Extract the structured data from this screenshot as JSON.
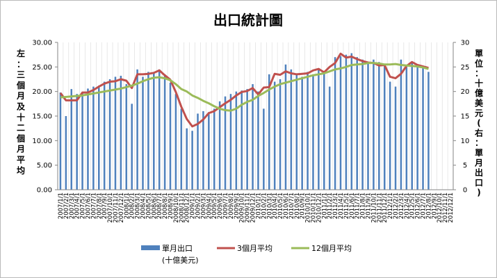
{
  "chart_data": {
    "type": "bar",
    "title": "出口統計圖",
    "ylabel_left": "左：三個月及十二個月平均",
    "ylabel_right": "單位：十億美元(右：單月出口)",
    "ylim_left": [
      0,
      30
    ],
    "ylim_right": [
      0,
      30
    ],
    "yticks_left": [
      "0.00",
      "5.00",
      "10.00",
      "15.00",
      "20.00",
      "25.00",
      "30.00"
    ],
    "yticks_right": [
      "0",
      "5",
      "10",
      "15",
      "20",
      "25",
      "30"
    ],
    "grid": "vertical",
    "legend_position": "bottom",
    "x": [
      "2007/1/1",
      "2007/2/1",
      "2007/3/1",
      "2007/4/1",
      "2007/5/1",
      "2007/6/1",
      "2007/7/1",
      "2007/8/1",
      "2007/9/1",
      "2007/10/1",
      "2007/11/1",
      "2007/12/1",
      "2008/1/1",
      "2008/2/1",
      "2008/3/1",
      "2008/4/1",
      "2008/5/1",
      "2008/6/1",
      "2008/7/1",
      "2008/8/1",
      "2008/9/1",
      "2008/10/1",
      "2008/11/1",
      "2008/12/1",
      "2009/1/1",
      "2009/2/1",
      "2009/3/1",
      "2009/4/1",
      "2009/5/1",
      "2009/6/1",
      "2009/7/1",
      "2009/8/1",
      "2009/9/1",
      "2009/10/1",
      "2009/11/1",
      "2009/12/1",
      "2010/1/1",
      "2010/2/1",
      "2010/3/1",
      "2010/4/1",
      "2010/5/1",
      "2010/6/1",
      "2010/7/1",
      "2010/8/1",
      "2010/9/1",
      "2010/10/1",
      "2010/11/1",
      "2010/12/1",
      "2011/1/1",
      "2011/2/1",
      "2011/3/1",
      "2011/4/1",
      "2011/5/1",
      "2011/6/1",
      "2011/7/1",
      "2011/8/1",
      "2011/9/1",
      "2011/10/1",
      "2011/11/1",
      "2011/12/1",
      "2012/1/1",
      "2012/2/1",
      "2012/3/1",
      "2012/4/1",
      "2012/5/1",
      "2012/6/1",
      "2012/7/1",
      "2012/8/1",
      "2012/9/1",
      "2012/10/1",
      "2012/11/1",
      "2012/12/1"
    ],
    "x_labels_shown": [
      "2007/1/1",
      "2007/2/1",
      "2007/3/1",
      "2007/4/1",
      "2007/5/1",
      "2007/6/1",
      "2007/7/1",
      "2007/8/1",
      "2007/9/1",
      "2007/10/1",
      "2007/11/1",
      "2007/12/1",
      "2008/1/1",
      "2008/2/1",
      "2008/3/1",
      "2008/4/1",
      "2008/5/1",
      "2008/6/1",
      "2008/7/1",
      "2008/8/1",
      "2008/9/1",
      "2008/10/1",
      "2008/11/1",
      "2008/12/1",
      "2009/1/1",
      "2009/2/1",
      "2009/3/1",
      "2009/4/1",
      "2009/5/1",
      "2009/6/1",
      "2009/7/1",
      "2009/8/1",
      "2009/9/1",
      "2009/10/1",
      "2009/11/1",
      "2009/12/1",
      "2010/1/1",
      "2010/2/1",
      "2010/3/1",
      "2010/4/1",
      "2010/5/1",
      "2010/6/1",
      "2010/7/1",
      "2010/8/1",
      "2010/9/1",
      "2010/10/1",
      "2010/11/1",
      "2010/12/1",
      "2011/1/1",
      "2011/2/1",
      "2011/3/1",
      "2011/4/1",
      "2011/5/1",
      "2011/6/1",
      "2011/7/1",
      "2011/8/1",
      "2011/9/1",
      "2011/10/1",
      "2011/11/1",
      "2011/12/1",
      "2012/1/1",
      "2012/2/1",
      "2012/3/1",
      "2012/4/1",
      "2012/5/1",
      "2012/6/1",
      "2012/7/1",
      "2012/8/1",
      "2012/9/1",
      "2012/10/1",
      "2012/11/1",
      "2012/12/1"
    ],
    "series": [
      {
        "name": "單月出口\n(十億美元)",
        "type": "bar",
        "axis": "right",
        "color": "#4f81bd",
        "values": [
          19.8,
          15.0,
          20.5,
          19.5,
          19.8,
          20.6,
          21.0,
          21.2,
          22.0,
          22.5,
          23.0,
          23.2,
          21.5,
          17.5,
          24.5,
          23.0,
          24.0,
          23.8,
          24.5,
          23.5,
          21.8,
          19.5,
          16.5,
          12.5,
          12.0,
          15.5,
          16.0,
          15.8,
          16.5,
          18.0,
          19.0,
          19.5,
          20.0,
          20.2,
          20.5,
          21.5,
          20.0,
          16.5,
          23.5,
          22.0,
          22.5,
          25.5,
          24.5,
          23.5,
          23.0,
          24.0,
          23.5,
          24.5,
          24.0,
          21.0,
          27.0,
          27.2,
          27.5,
          27.8,
          27.0,
          26.5,
          25.8,
          26.5,
          26.0,
          25.5,
          22.0,
          21.0,
          26.5,
          25.0,
          26.0,
          25.5,
          25.0,
          24.0,
          null,
          null,
          null,
          null
        ]
      },
      {
        "name": "3個月平均",
        "type": "line",
        "axis": "left",
        "color": "#c0504d",
        "values": [
          19.7,
          18.2,
          18.2,
          18.2,
          19.8,
          19.8,
          20.3,
          21.0,
          21.6,
          22.0,
          22.1,
          22.5,
          22.2,
          20.7,
          23.5,
          23.5,
          23.6,
          23.8,
          24.3,
          23.3,
          22.4,
          19.9,
          16.9,
          14.4,
          12.9,
          13.4,
          14.3,
          15.6,
          16.0,
          16.8,
          17.6,
          18.3,
          19.2,
          19.9,
          20.1,
          20.7,
          19.4,
          20.8,
          20.9,
          23.6,
          23.4,
          24.1,
          23.7,
          23.5,
          23.6,
          23.7,
          24.3,
          24.6,
          23.9,
          25.0,
          25.8,
          27.7,
          26.9,
          27.1,
          26.6,
          26.2,
          25.9,
          25.8,
          25.3,
          25.4,
          23.0,
          22.7,
          23.6,
          25.2,
          26.0,
          25.4,
          25.1,
          24.8,
          null,
          null,
          null,
          null
        ]
      },
      {
        "name": "12個月平均",
        "type": "line",
        "axis": "left",
        "color": "#9bbb59",
        "values": [
          18.8,
          18.9,
          19.0,
          19.1,
          19.2,
          19.4,
          19.6,
          19.8,
          20.0,
          20.2,
          20.4,
          20.6,
          20.9,
          21.2,
          21.6,
          22.1,
          22.5,
          22.8,
          22.9,
          22.7,
          22.3,
          21.5,
          20.5,
          20.0,
          19.2,
          18.7,
          18.1,
          17.6,
          17.0,
          16.5,
          16.2,
          16.1,
          16.5,
          17.3,
          17.9,
          18.3,
          19.1,
          19.7,
          20.4,
          21.0,
          21.5,
          21.8,
          22.1,
          22.4,
          22.7,
          23.0,
          23.3,
          23.5,
          23.7,
          24.1,
          24.5,
          24.7,
          25.0,
          25.4,
          25.5,
          25.6,
          25.8,
          25.8,
          25.7,
          25.5,
          25.5,
          25.6,
          25.4,
          25.3,
          25.2,
          25.1,
          24.9,
          24.6,
          null,
          null,
          null,
          null
        ]
      }
    ]
  },
  "legend": {
    "bar_label_line1": "單月出口",
    "bar_label_line2": "(十億美元)",
    "line3_label": "3個月平均",
    "line12_label": "12個月平均"
  }
}
